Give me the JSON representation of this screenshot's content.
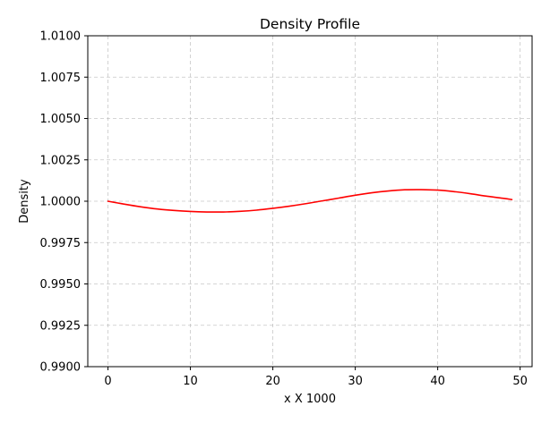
{
  "chart_data": {
    "type": "line",
    "title": "Density Profile",
    "xlabel": "x X 1000",
    "ylabel": "Density",
    "xlim": [
      -2.45,
      51.45
    ],
    "ylim": [
      0.99,
      1.01
    ],
    "xticks": [
      0,
      10,
      20,
      30,
      40,
      50
    ],
    "xtick_labels": [
      "0",
      "10",
      "20",
      "30",
      "40",
      "50"
    ],
    "yticks": [
      0.99,
      0.9925,
      0.995,
      0.9975,
      1.0,
      1.0025,
      1.005,
      1.0075,
      1.01
    ],
    "ytick_labels": [
      "0.9900",
      "0.9925",
      "0.9950",
      "0.9975",
      "1.0000",
      "1.0025",
      "1.0050",
      "1.0075",
      "1.0100"
    ],
    "grid": true,
    "series": [
      {
        "color": "#ff0000",
        "x": [
          0,
          2,
          4,
          6,
          8,
          10,
          12,
          14,
          16,
          18,
          20,
          22,
          24,
          26,
          28,
          30,
          32,
          34,
          36,
          38,
          40,
          42,
          44,
          46,
          48,
          49
        ],
        "y": [
          1.0,
          0.99982,
          0.99966,
          0.99953,
          0.99944,
          0.99938,
          0.99935,
          0.99935,
          0.99939,
          0.99946,
          0.99957,
          0.9997,
          0.99985,
          1.00002,
          1.00019,
          1.00036,
          1.00051,
          1.00062,
          1.00069,
          1.0007,
          1.00067,
          1.00058,
          1.00045,
          1.0003,
          1.00017,
          1.0001
        ]
      }
    ]
  }
}
